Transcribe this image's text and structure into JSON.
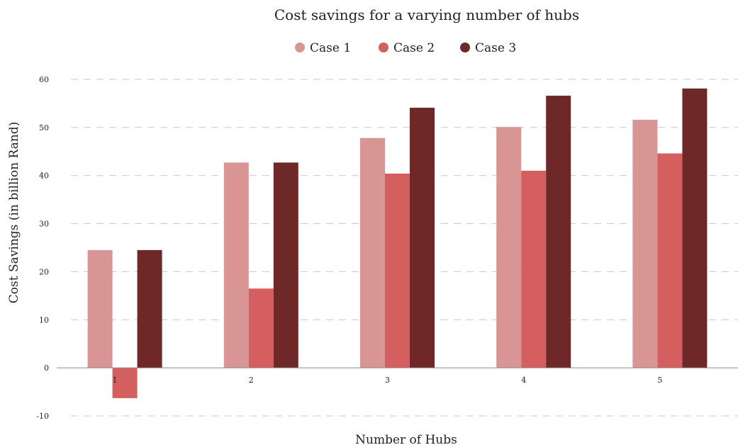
{
  "chart_data": {
    "type": "bar",
    "title": "Cost savings for a varying number of hubs",
    "xlabel": "Number of Hubs",
    "ylabel": "Cost Savings (in billion Rand)",
    "categories": [
      "1",
      "2",
      "3",
      "4",
      "5"
    ],
    "series": [
      {
        "name": "Case 1",
        "color": "#d99594",
        "values": [
          24.5,
          42.7,
          47.8,
          50.1,
          51.6
        ]
      },
      {
        "name": "Case 2",
        "color": "#d55f5e",
        "values": [
          -6.3,
          16.5,
          40.4,
          41.0,
          44.6
        ]
      },
      {
        "name": "Case 3",
        "color": "#6e2828",
        "values": [
          24.5,
          42.7,
          54.1,
          56.6,
          58.1
        ]
      }
    ],
    "ylim": [
      -10,
      60
    ],
    "yticks": [
      -10,
      0,
      10,
      20,
      30,
      40,
      50,
      60
    ],
    "grid": true,
    "legend_position": "top-center"
  }
}
